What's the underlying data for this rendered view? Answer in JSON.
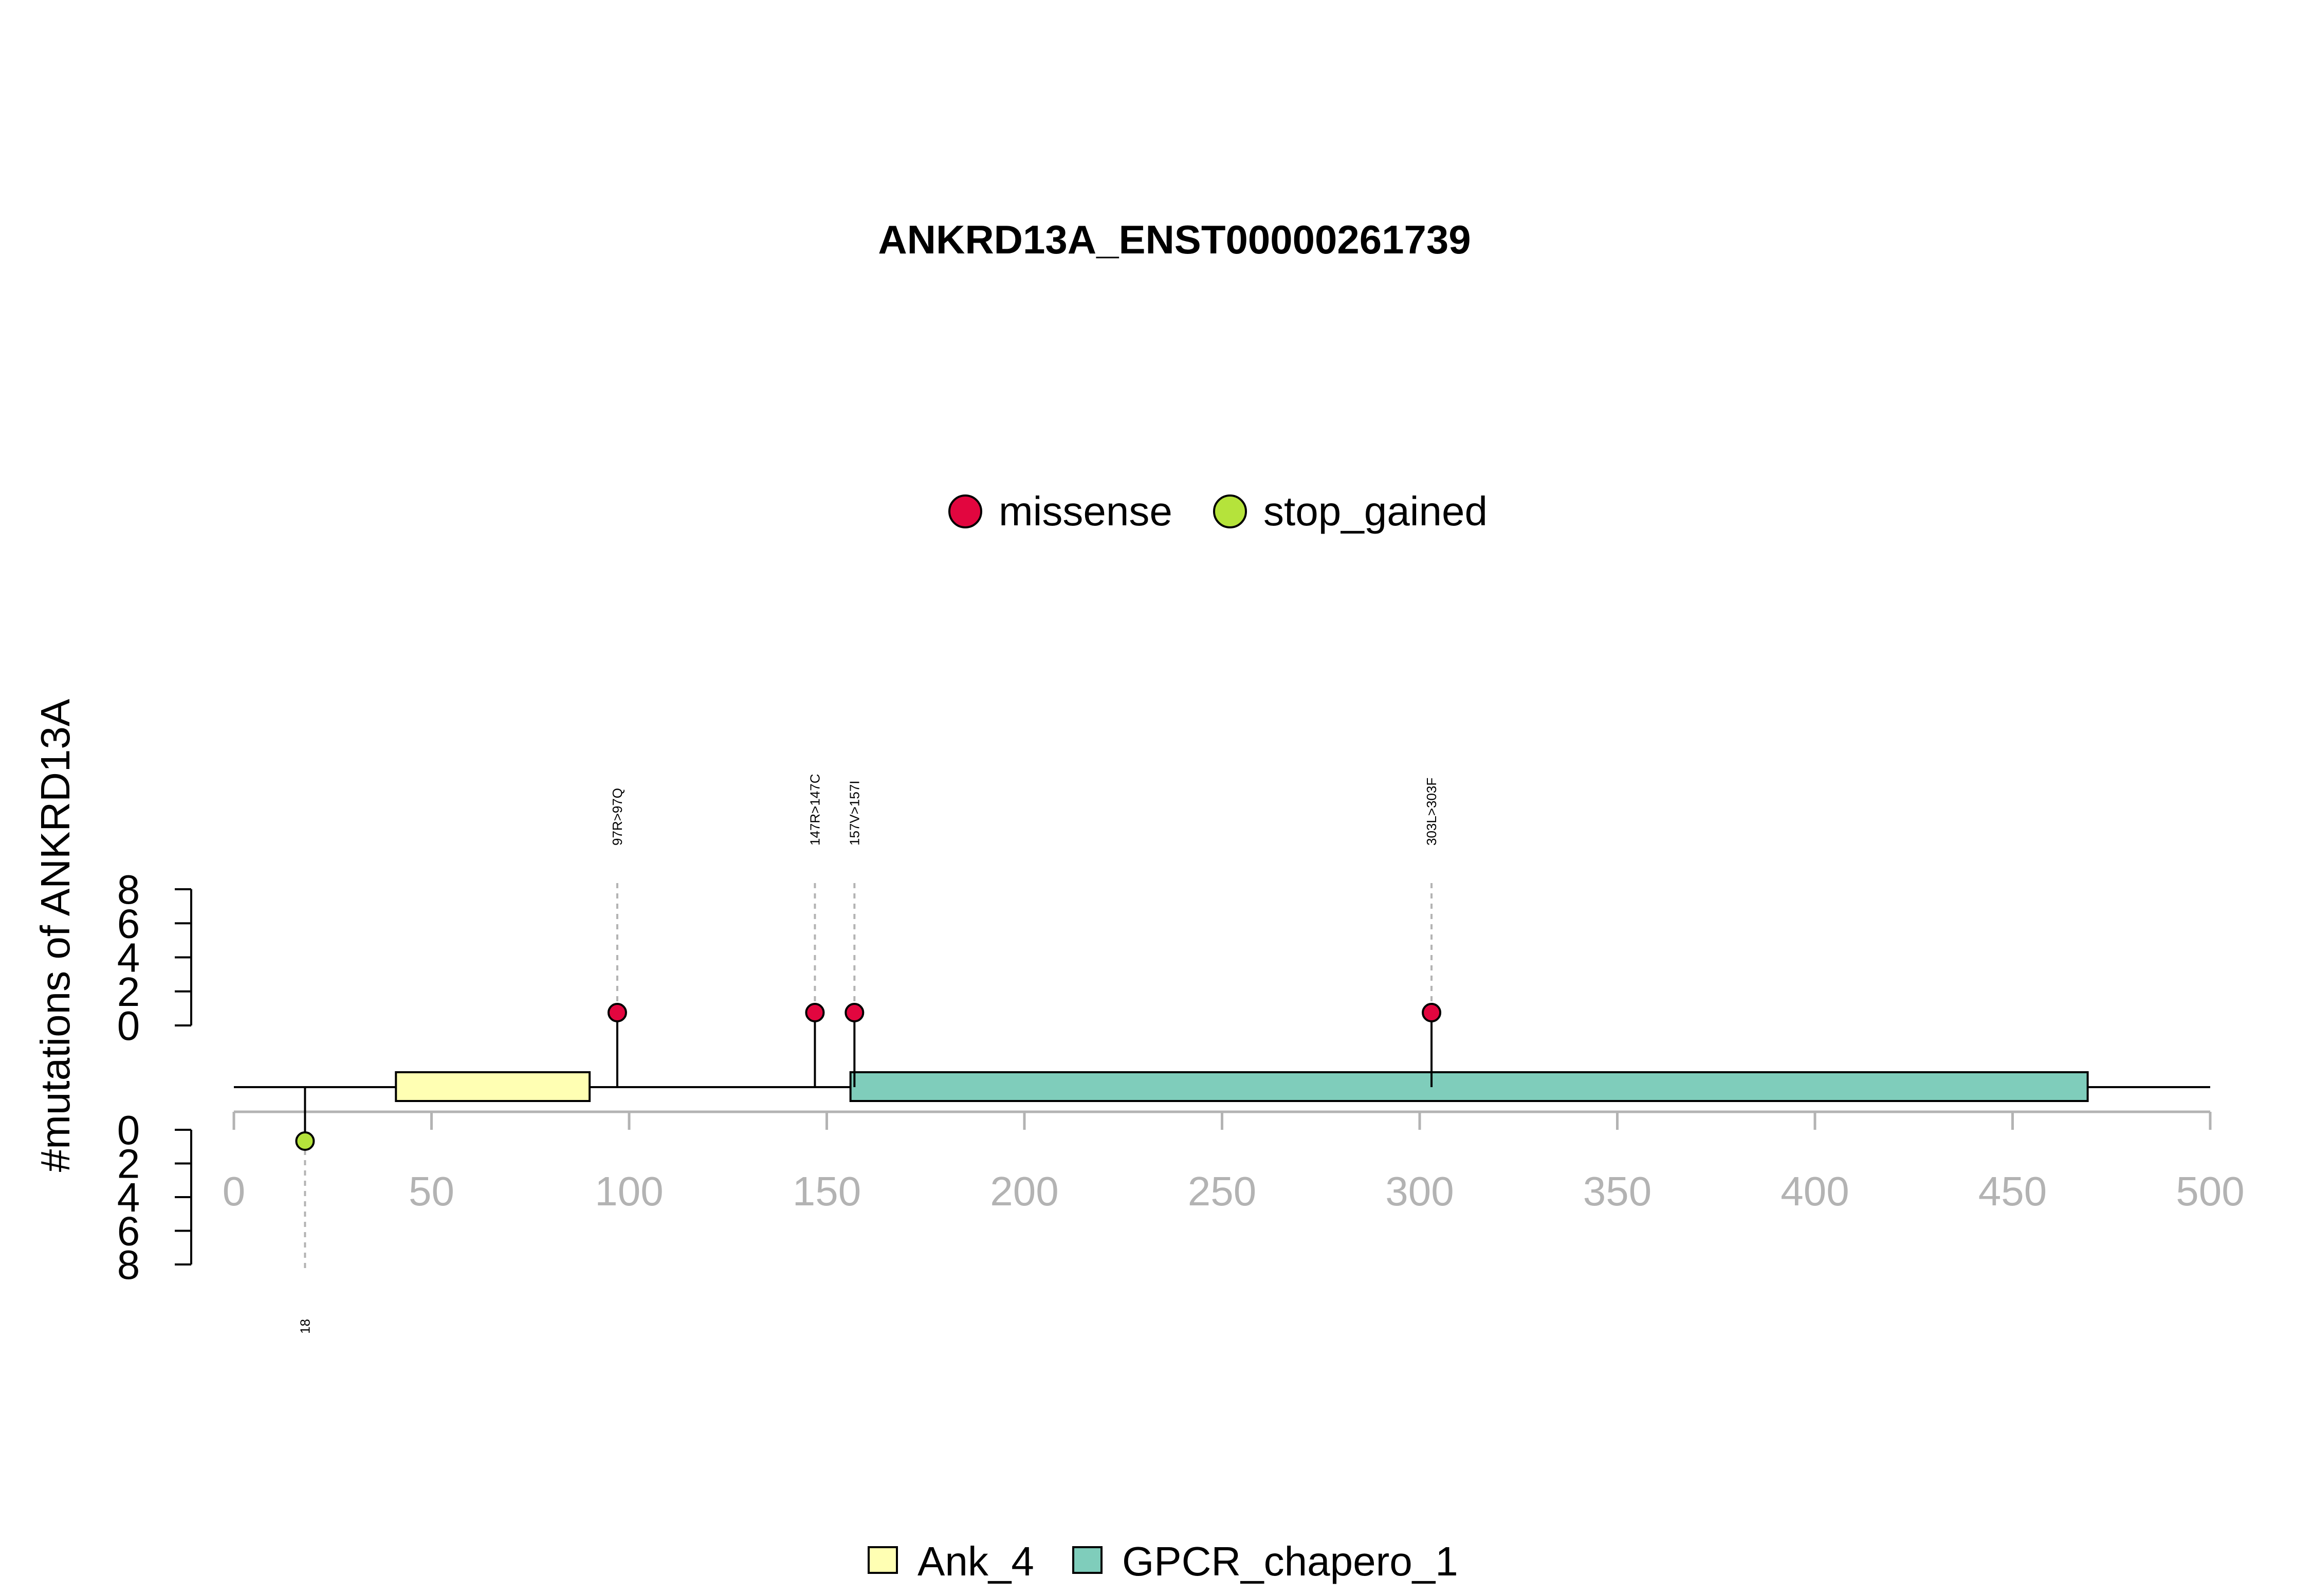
{
  "chart_data": {
    "type": "lollipop",
    "title": "ANKRD13A_ENST00000261739",
    "ylabel": "#mutations of ANKRD13A",
    "xlim": [
      0,
      500
    ],
    "x_ticks": [
      0,
      50,
      100,
      150,
      200,
      250,
      300,
      350,
      400,
      450,
      500
    ],
    "y_ticks_top": [
      0,
      2,
      4,
      6,
      8
    ],
    "y_ticks_bottom": [
      0,
      2,
      4,
      6,
      8
    ],
    "protein_length": 500,
    "mutation_legend": [
      {
        "name": "missense",
        "color": "#e2063f"
      },
      {
        "name": "stop_gained",
        "color": "#b5e33b"
      }
    ],
    "mutations": [
      {
        "position": 97,
        "label": "97R>97Q",
        "type": "missense",
        "count": 1,
        "side": "top"
      },
      {
        "position": 147,
        "label": "147R>147C",
        "type": "missense",
        "count": 1,
        "side": "top"
      },
      {
        "position": 157,
        "label": "157V>157I",
        "type": "missense",
        "count": 1,
        "side": "top"
      },
      {
        "position": 303,
        "label": "303L>303F",
        "type": "missense",
        "count": 1,
        "side": "top"
      },
      {
        "position": 18,
        "label": "18",
        "type": "stop_gained",
        "count": 1,
        "side": "bottom"
      }
    ],
    "domains": [
      {
        "name": "Ank_4",
        "start": 41,
        "end": 90,
        "color": "#ffffb3"
      },
      {
        "name": "GPCR_chapero_1",
        "start": 156,
        "end": 469,
        "color": "#7fcdbb"
      }
    ],
    "domain_legend": [
      {
        "name": "Ank_4",
        "color": "#ffffb3"
      },
      {
        "name": "GPCR_chapero_1",
        "color": "#7fcdbb"
      }
    ],
    "legend_placement": "top-center (mutations), bottom-center (domains)",
    "grid": false
  }
}
